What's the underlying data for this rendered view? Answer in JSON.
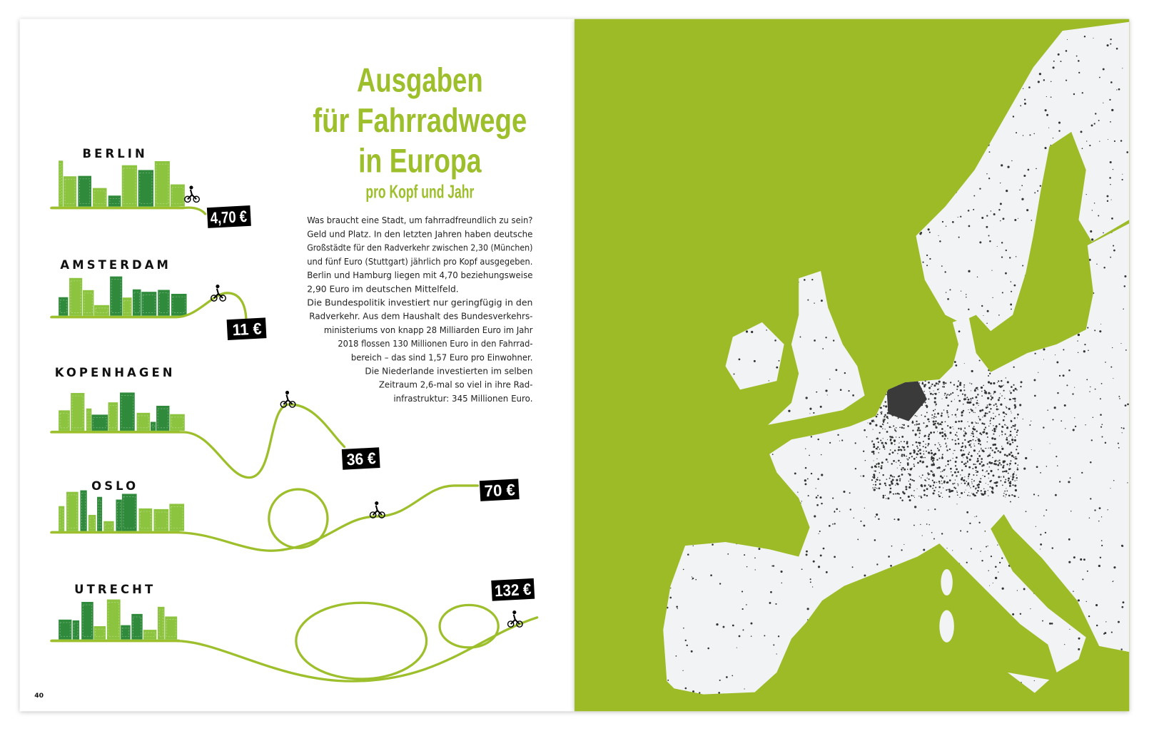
{
  "page": {
    "number": "40"
  },
  "title": {
    "lines": [
      "Ausgaben",
      "für Fahrradwege",
      "in Europa"
    ],
    "subtitle": "pro Kopf und Jahr"
  },
  "body": {
    "lines": [
      "Was braucht eine Stadt, um fahrradfreundlich zu sein?",
      "Geld und Platz. In den letzten Jahren haben deutsche",
      "Großstädte für den Radverkehr zwischen 2,30 (München)",
      "und fünf Euro (Stuttgart) jährlich pro Kopf ausgegeben.",
      "Berlin und Hamburg liegen mit 4,70 beziehungsweise",
      "2,90 Euro im deutschen Mittelfeld.",
      "Die Bundespolitik investiert nur geringfügig in den",
      "Radverkehr. Aus dem Haushalt des Bundesverkehrs-",
      "ministeriums von knapp 28 Milliarden Euro im Jahr",
      "2018 flossen 130 Millionen Euro in den Fahrrad-",
      "bereich – das sind 1,57 Euro pro Einwohner.",
      "Die Niederlande investierten im selben",
      "Zeitraum 2,6-mal so viel in ihre Rad-",
      "infrastruktur: 345 Millionen Euro."
    ]
  },
  "cities": [
    {
      "name": "BERLIN",
      "amount": "4,70 €",
      "value_eur": 4.7
    },
    {
      "name": "AMSTERDAM",
      "amount": "11 €",
      "value_eur": 11
    },
    {
      "name": "KOPENHAGEN",
      "amount": "36 €",
      "value_eur": 36
    },
    {
      "name": "OSLO",
      "amount": "70 €",
      "value_eur": 70
    },
    {
      "name": "UTRECHT",
      "amount": "132 €",
      "value_eur": 132
    }
  ],
  "colors": {
    "accent": "#9dbf2b",
    "map_background": "#9cbb28",
    "land": "#f2f3f4",
    "cycle_network": "#333333",
    "skyline_dark": "#2f8a3b",
    "skyline_light": "#8cc43f",
    "price_tag": "#000000"
  },
  "icons": [
    "cyclist-icon",
    "europe-map"
  ]
}
